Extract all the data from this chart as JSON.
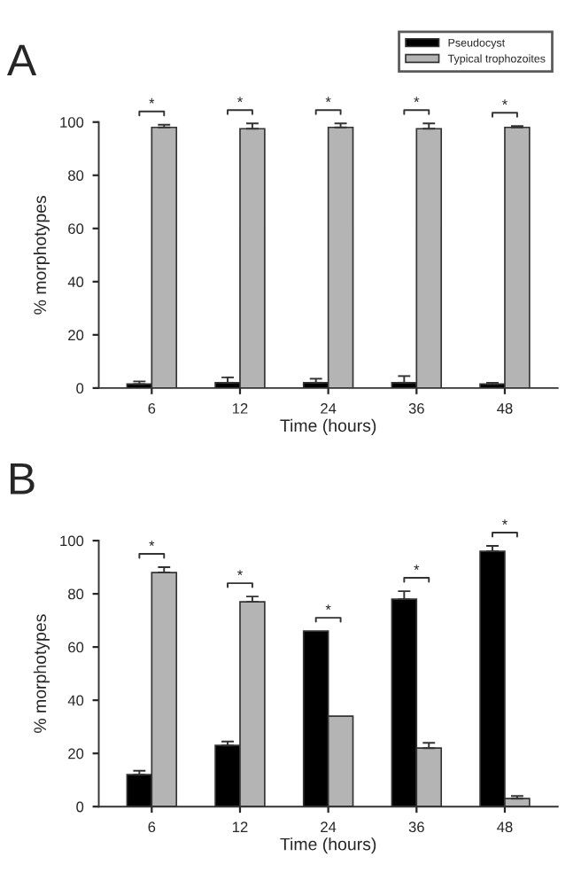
{
  "chart_data": [
    {
      "type": "bar",
      "title": "A",
      "xlabel": "Time (hours)",
      "ylabel": "% morphotypes",
      "categories": [
        "6",
        "12",
        "24",
        "36",
        "48"
      ],
      "series": [
        {
          "name": "Pseudocyst",
          "color": "#000000",
          "values": [
            1.5,
            2,
            2,
            2,
            1.5
          ],
          "errors": [
            1,
            2,
            1.5,
            2.5,
            0.5
          ]
        },
        {
          "name": "Typical trophozoites",
          "color": "#b4b4b4",
          "values": [
            98,
            97.5,
            98,
            97.5,
            98
          ],
          "errors": [
            1,
            2,
            1.5,
            2,
            0.5
          ]
        }
      ],
      "ylim": [
        0,
        100
      ],
      "yticks": [
        0,
        20,
        40,
        60,
        80,
        100
      ],
      "legend": "top right",
      "grid": false,
      "annotations": [
        "*",
        "*",
        "*",
        "*",
        "*"
      ]
    },
    {
      "type": "bar",
      "title": "B",
      "xlabel": "Time (hours)",
      "ylabel": "% morphotypes",
      "categories": [
        "6",
        "12",
        "24",
        "36",
        "48"
      ],
      "series": [
        {
          "color": "#000000",
          "values": [
            12,
            23,
            66,
            78,
            96
          ],
          "errors": [
            1.5,
            1.5,
            null,
            3,
            2
          ]
        },
        {
          "color": "#b4b4b4",
          "values": [
            88,
            77,
            34,
            22,
            3
          ],
          "errors": [
            2,
            2,
            null,
            2,
            1
          ]
        }
      ],
      "ylim": [
        0,
        100
      ],
      "yticks": [
        0,
        20,
        40,
        60,
        80,
        100
      ],
      "legend": false,
      "grid": false,
      "annotations": [
        "*",
        "*",
        "*",
        "*",
        "*"
      ]
    }
  ]
}
